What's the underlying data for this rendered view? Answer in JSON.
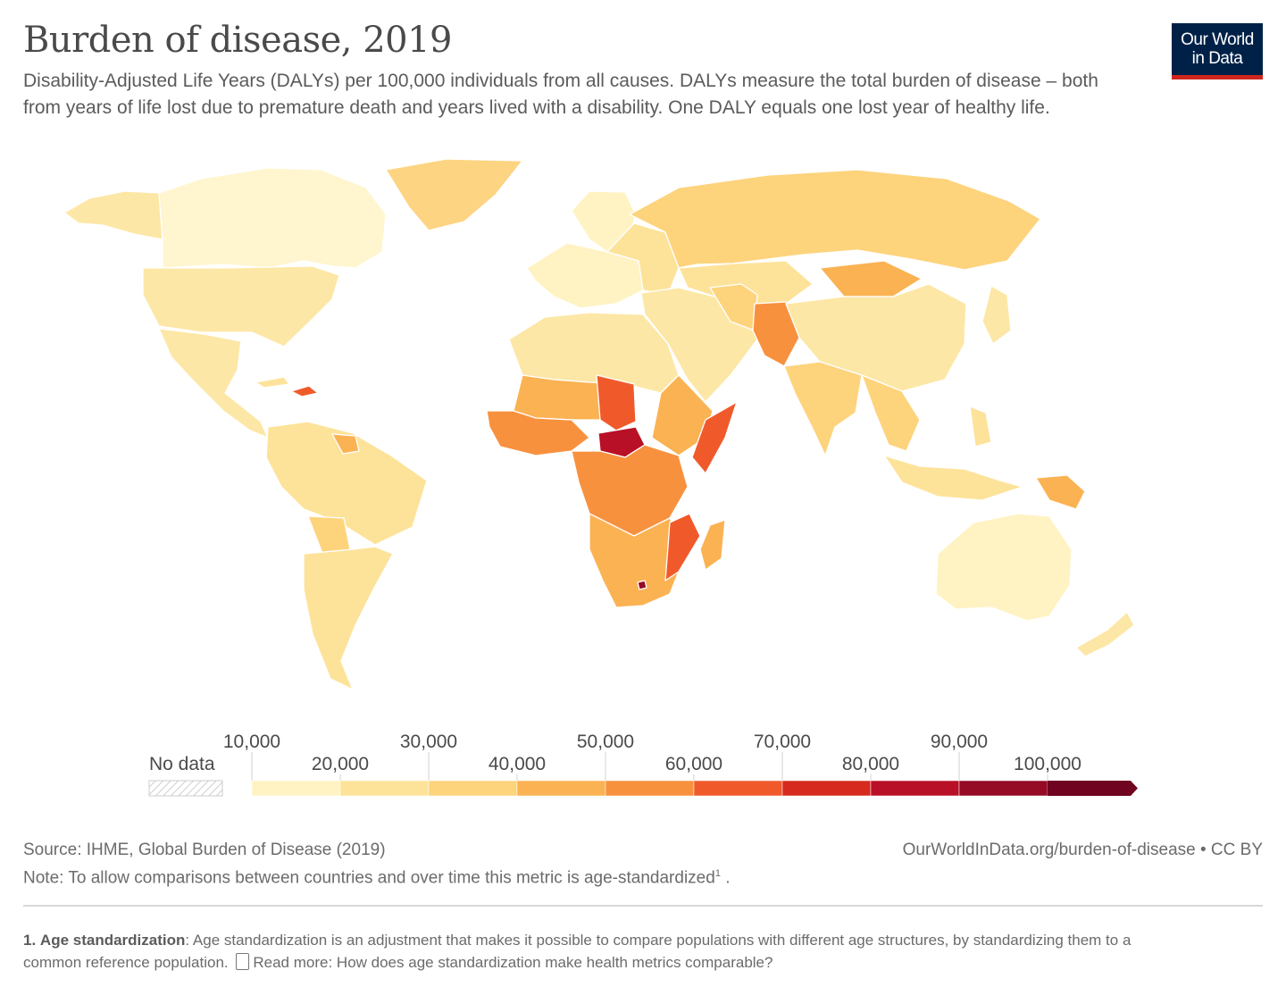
{
  "title": "Burden of disease, 2019",
  "subtitle": "Disability-Adjusted Life Years (DALYs) per 100,000 individuals from all causes. DALYs measure the total burden of disease – both from years of life lost due to premature death and years lived with a disability. One DALY equals one lost year of healthy life.",
  "logo": {
    "line1": "Our World",
    "line2": "in Data",
    "bg_color": "#002147",
    "accent_color": "#ce261e"
  },
  "legend": {
    "no_data_label": "No data",
    "ticks_top": [
      "10,000",
      "30,000",
      "50,000",
      "70,000",
      "90,000"
    ],
    "ticks_bottom": [
      "20,000",
      "40,000",
      "60,000",
      "80,000",
      "100,000"
    ],
    "colors": [
      "#fff3c4",
      "#fde39a",
      "#fdd37c",
      "#fbb253",
      "#f8913e",
      "#f05a2b",
      "#d62a1f",
      "#b81026",
      "#950a24",
      "#6f0320"
    ]
  },
  "source": "Source: IHME, Global Burden of Disease (2019)",
  "note": "Note: To allow comparisons between countries and over time this metric is age-standardized",
  "note_sup": "1",
  "site": "OurWorldInData.org/burden-of-disease • CC BY",
  "footnote": {
    "number": "1.",
    "term": "Age standardization",
    "text": "Age standardization is an adjustment that makes it possible to compare populations with different age structures, by standardizing them to a common reference population.",
    "read_more": "Read more: How does age standardization make health metrics comparable?"
  }
}
